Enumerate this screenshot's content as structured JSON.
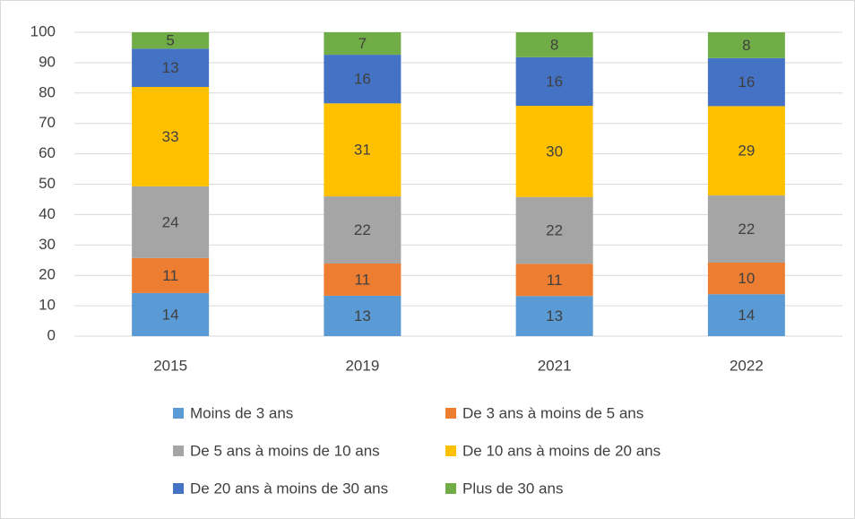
{
  "chart_data": {
    "type": "stacked_bar",
    "categories": [
      "2015",
      "2019",
      "2021",
      "2022"
    ],
    "series": [
      {
        "name": "Moins de 3 ans",
        "color": "#5b9bd5",
        "values": [
          14.2,
          13.3,
          13.2,
          13.8
        ],
        "value_labels": [
          "14",
          "13",
          "13",
          "14"
        ]
      },
      {
        "name": "De 3 ans à moins de 5 ans",
        "color": "#ed7d31",
        "values": [
          11.5,
          10.6,
          10.6,
          10.4
        ],
        "value_labels": [
          "11",
          "11",
          "11",
          "10"
        ]
      },
      {
        "name": "De 5 ans à moins de 10 ans",
        "color": "#a5a5a5",
        "values": [
          23.6,
          22.1,
          22.0,
          22.1
        ],
        "value_labels": [
          "24",
          "22",
          "22",
          "22"
        ]
      },
      {
        "name": "De 10 ans à moins de 20 ans",
        "color": "#ffc000",
        "values": [
          32.7,
          30.6,
          30.0,
          29.4
        ],
        "value_labels": [
          "33",
          "31",
          "30",
          "29"
        ]
      },
      {
        "name": "De 20 ans à moins de 30 ans",
        "color": "#4472c4",
        "values": [
          12.6,
          16.0,
          16.0,
          15.8
        ],
        "value_labels": [
          "13",
          "16",
          "16",
          "16"
        ]
      },
      {
        "name": "Plus de 30 ans",
        "color": "#70ad47",
        "values": [
          5.4,
          7.4,
          8.2,
          8.5
        ],
        "value_labels": [
          "5",
          "7",
          "8",
          "8"
        ]
      }
    ],
    "ylim": [
      0,
      100
    ],
    "yticks": [
      0,
      10,
      20,
      30,
      40,
      50,
      60,
      70,
      80,
      90,
      100
    ],
    "grid": true,
    "legend": "bottom"
  }
}
